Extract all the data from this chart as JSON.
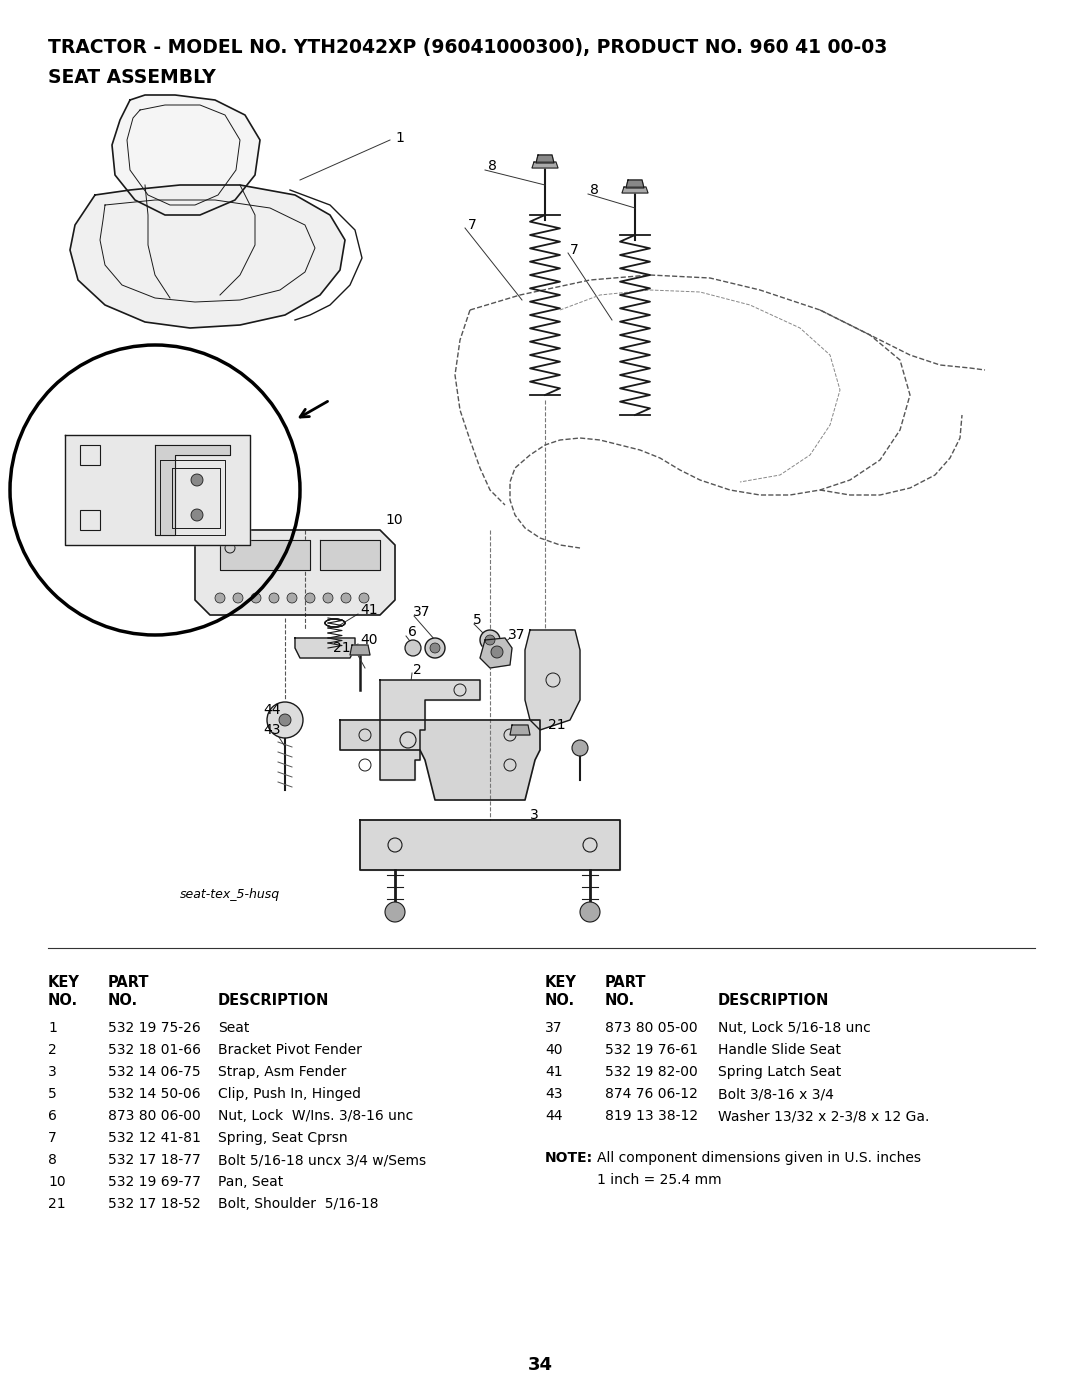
{
  "title_line1": "TRACTOR - MODEL NO. YTH2042XP (96041000300), PRODUCT NO. 960 41 00-03",
  "title_line2": "SEAT ASSEMBLY",
  "image_label": "seat-tex_5-husq",
  "page_number": "34",
  "parts_left": [
    [
      "1",
      "532 19 75-26",
      "Seat"
    ],
    [
      "2",
      "532 18 01-66",
      "Bracket Pivot Fender"
    ],
    [
      "3",
      "532 14 06-75",
      "Strap, Asm Fender"
    ],
    [
      "5",
      "532 14 50-06",
      "Clip, Push In, Hinged"
    ],
    [
      "6",
      "873 80 06-00",
      "Nut, Lock  W/Ins. 3/8-16 unc"
    ],
    [
      "7",
      "532 12 41-81",
      "Spring, Seat Cprsn"
    ],
    [
      "8",
      "532 17 18-77",
      "Bolt 5/16-18 uncx 3/4 w/Sems"
    ],
    [
      "10",
      "532 19 69-77",
      "Pan, Seat"
    ],
    [
      "21",
      "532 17 18-52",
      "Bolt, Shoulder  5/16-18"
    ]
  ],
  "parts_right": [
    [
      "37",
      "873 80 05-00",
      "Nut, Lock 5/16-18 unc"
    ],
    [
      "40",
      "532 19 76-61",
      "Handle Slide Seat"
    ],
    [
      "41",
      "532 19 82-00",
      "Spring Latch Seat"
    ],
    [
      "43",
      "874 76 06-12",
      "Bolt 3/8-16 x 3/4"
    ],
    [
      "44",
      "819 13 38-12",
      "Washer 13/32 x 2-3/8 x 12 Ga."
    ]
  ],
  "bg_color": "#ffffff",
  "text_color": "#000000"
}
